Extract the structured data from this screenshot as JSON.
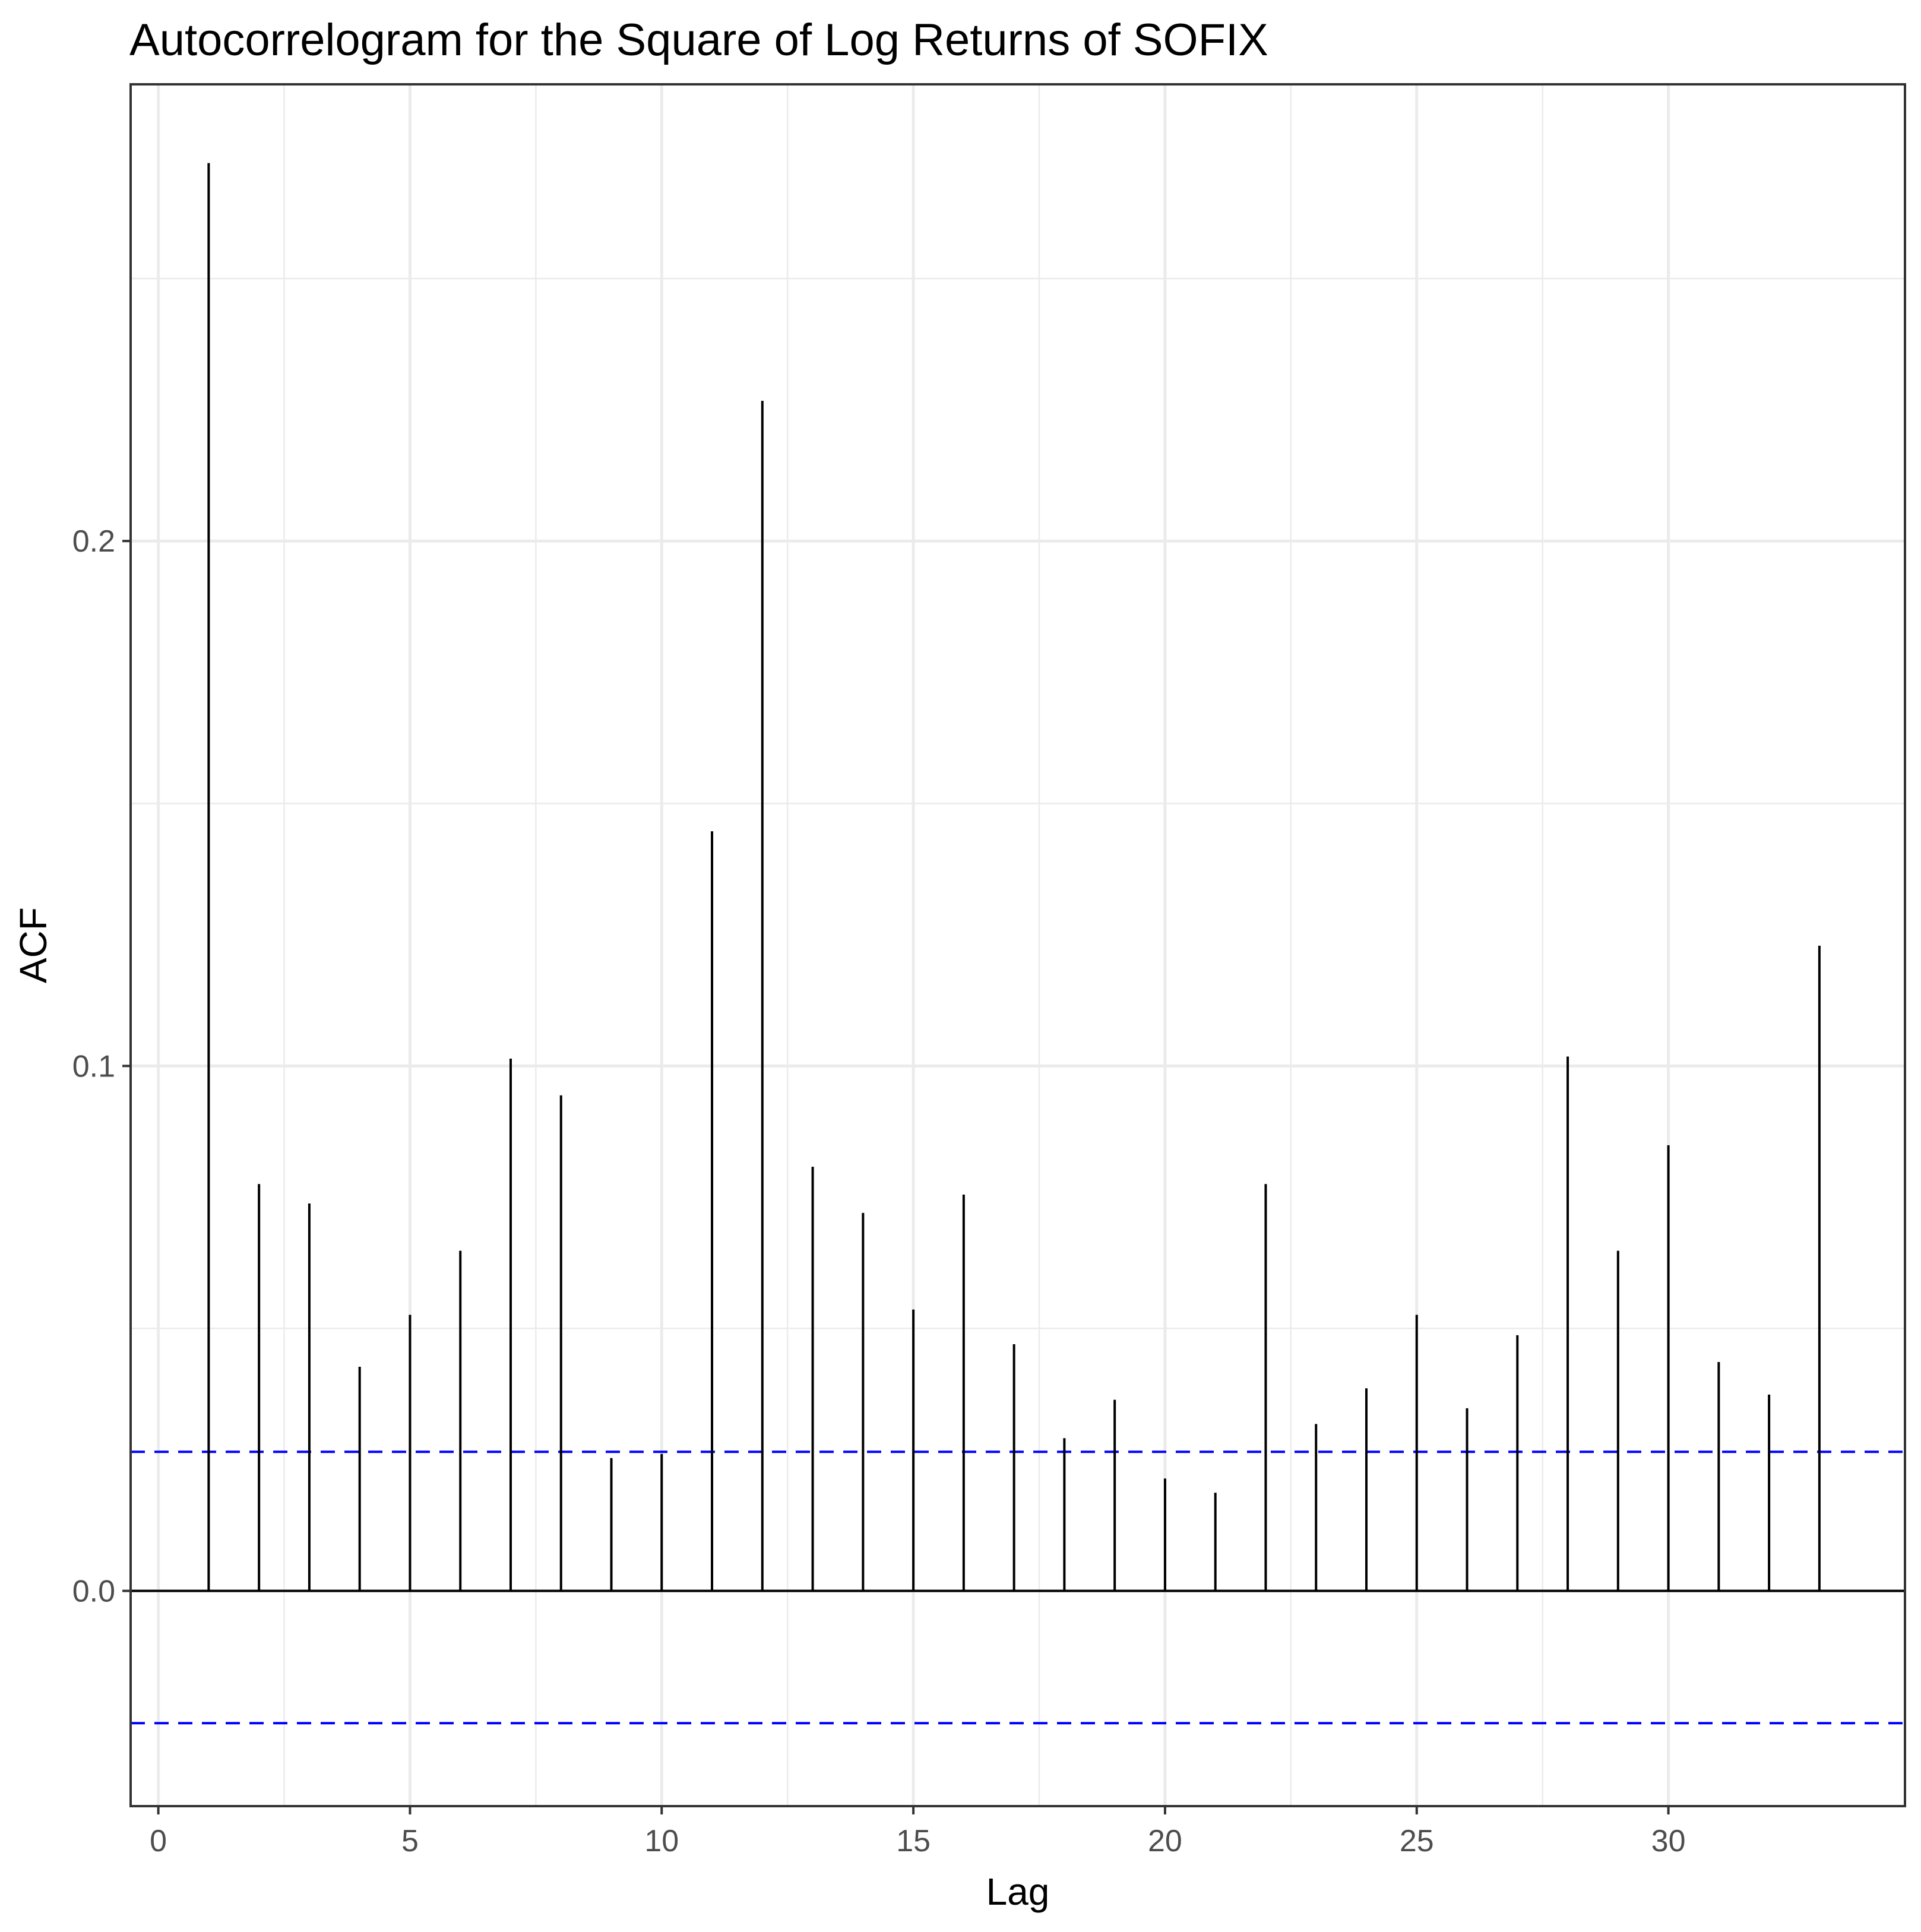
{
  "chart_data": {
    "type": "bar",
    "subtype": "acf-stem",
    "title": "Autocorrelogram for the Square of Log Returns of SOFIX",
    "xlabel": "Lag",
    "ylabel": "ACF",
    "xlim": [
      -0.55,
      34.7
    ],
    "ylim": [
      -0.041,
      0.287
    ],
    "x_ticks": [
      0,
      5,
      10,
      15,
      20,
      25,
      30
    ],
    "x_tick_labels": [
      "0",
      "5",
      "10",
      "15",
      "20",
      "25",
      "30"
    ],
    "y_ticks": [
      0.0,
      0.1,
      0.2
    ],
    "y_tick_labels": [
      "0.0",
      "0.1",
      "0.2"
    ],
    "y_minor_ticks": [
      0.05,
      0.15,
      0.25
    ],
    "grid": true,
    "x": [
      1,
      2,
      3,
      4,
      5,
      6,
      7,
      8,
      9,
      10,
      11,
      12,
      13,
      14,
      15,
      16,
      17,
      18,
      19,
      20,
      21,
      22,
      23,
      24,
      25,
      26,
      27,
      28,
      29,
      30,
      31,
      32,
      33
    ],
    "values": [
      0.272,
      0.0775,
      0.0738,
      0.0427,
      0.0526,
      0.0648,
      0.1014,
      0.0944,
      0.0253,
      0.0261,
      0.1447,
      0.2267,
      0.0808,
      0.072,
      0.0536,
      0.0755,
      0.047,
      0.0291,
      0.0364,
      0.0214,
      0.0187,
      0.0775,
      0.0318,
      0.0386,
      0.0526,
      0.0348,
      0.0487,
      0.1018,
      0.0648,
      0.0849,
      0.0436,
      0.0374,
      0.1229
    ],
    "confidence_bounds": [
      0.0265,
      -0.0252
    ],
    "colors": {
      "stems": "#000000",
      "zero_line": "#000000",
      "confidence_lines": "#0000ff",
      "grid": "#ebebeb",
      "panel_border": "#333333",
      "tick_labels": "#4d4d4d",
      "text": "#000000"
    }
  }
}
